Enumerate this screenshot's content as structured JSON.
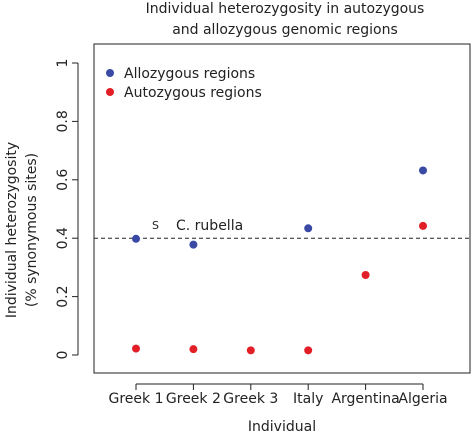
{
  "chart_data": {
    "type": "scatter",
    "title_line1": "Individual heterozygosity in autozygous",
    "title_line2": "and allozygous genomic regions",
    "xlabel": "Individual",
    "ylabel_line1": "Individual heterozygosity",
    "ylabel_line2": "(% synonymous  sites)",
    "categories": [
      "Greek 1",
      "Greek 2",
      "Greek 3",
      "Italy",
      "Argentina",
      "Algeria"
    ],
    "y_ticks": [
      "0",
      "0.2",
      "0.4",
      "0.6",
      "0.8",
      "1"
    ],
    "ylim": [
      0,
      1
    ],
    "series": [
      {
        "name": "Allozygous regions",
        "color": "#3a4aa4",
        "values": [
          0.398,
          0.378,
          null,
          0.434,
          null,
          0.632
        ]
      },
      {
        "name": "Autozygous regions",
        "color": "#e21f26",
        "values": [
          0.022,
          0.02,
          0.016,
          0.016,
          0.274,
          0.442
        ]
      }
    ],
    "reference_line": {
      "value": 0.4,
      "label": "C. rubella",
      "style": "dashed"
    },
    "point_annotation": {
      "category": "Greek 1",
      "series": "Allozygous regions",
      "label": "S"
    },
    "legend_position": "top-left",
    "grid": false
  }
}
